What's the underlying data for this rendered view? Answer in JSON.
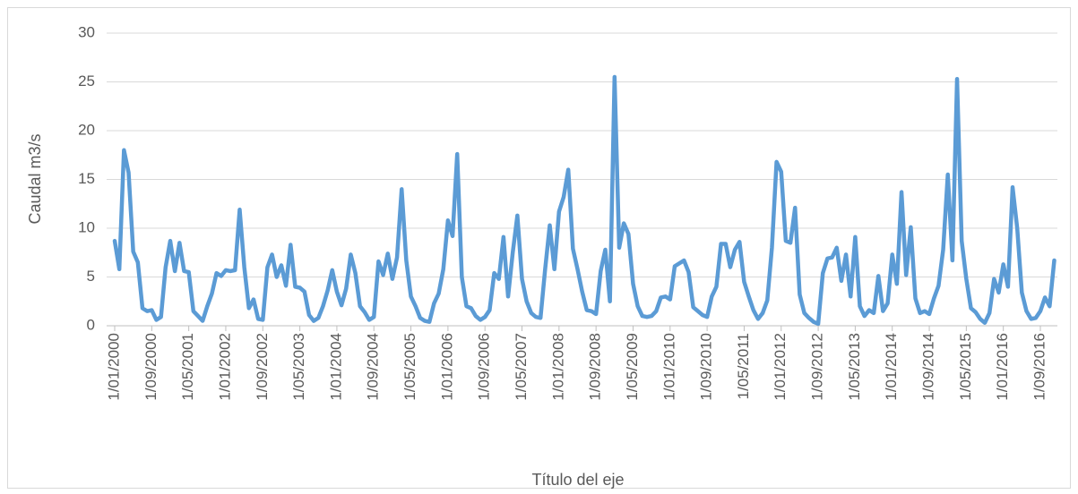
{
  "chart_data": {
    "type": "line",
    "y_label": "Caudal m3/s",
    "x_label": "Título del eje",
    "categories": [
      "1/01/2000",
      null,
      null,
      null,
      null,
      null,
      null,
      null,
      "1/09/2000",
      null,
      null,
      null,
      null,
      null,
      null,
      null,
      "1/05/2001",
      null,
      null,
      null,
      null,
      null,
      null,
      null,
      "1/01/2002",
      null,
      null,
      null,
      null,
      null,
      null,
      null,
      "1/09/2002",
      null,
      null,
      null,
      null,
      null,
      null,
      null,
      "1/05/2003",
      null,
      null,
      null,
      null,
      null,
      null,
      null,
      "1/01/2004",
      null,
      null,
      null,
      null,
      null,
      null,
      null,
      "1/09/2004",
      null,
      null,
      null,
      null,
      null,
      null,
      null,
      "1/05/2005",
      null,
      null,
      null,
      null,
      null,
      null,
      null,
      "1/01/2006",
      null,
      null,
      null,
      null,
      null,
      null,
      null,
      "1/09/2006",
      null,
      null,
      null,
      null,
      null,
      null,
      null,
      "1/05/2007",
      null,
      null,
      null,
      null,
      null,
      null,
      null,
      "1/01/2008",
      null,
      null,
      null,
      null,
      null,
      null,
      null,
      "1/09/2008",
      null,
      null,
      null,
      null,
      null,
      null,
      null,
      "1/05/2009",
      null,
      null,
      null,
      null,
      null,
      null,
      null,
      "1/01/2010",
      null,
      null,
      null,
      null,
      null,
      null,
      null,
      "1/09/2010",
      null,
      null,
      null,
      null,
      null,
      null,
      null,
      "1/05/2011",
      null,
      null,
      null,
      null,
      null,
      null,
      null,
      "1/01/2012",
      null,
      null,
      null,
      null,
      null,
      null,
      null,
      "1/09/2012",
      null,
      null,
      null,
      null,
      null,
      null,
      null,
      "1/05/2013",
      null,
      null,
      null,
      null,
      null,
      null,
      null,
      "1/01/2014",
      null,
      null,
      null,
      null,
      null,
      null,
      null,
      "1/09/2014",
      null,
      null,
      null,
      null,
      null,
      null,
      null,
      "1/05/2015",
      null,
      null,
      null,
      null,
      null,
      null,
      null,
      "1/01/2016",
      null,
      null,
      null,
      null,
      null,
      null,
      null,
      "1/09/2016",
      null,
      null,
      null
    ],
    "values": [
      8.7,
      5.8,
      18,
      15.7,
      7.6,
      6.5,
      1.8,
      1.5,
      1.6,
      0.6,
      0.9,
      6.0,
      8.7,
      5.6,
      8.5,
      5.6,
      5.5,
      1.5,
      1.0,
      0.5,
      2.0,
      3.3,
      5.4,
      5.1,
      5.7,
      5.6,
      5.7,
      11.9,
      6.0,
      1.8,
      2.7,
      0.7,
      0.6,
      6.0,
      7.3,
      5.0,
      6.2,
      4.1,
      8.3,
      4.0,
      3.9,
      3.5,
      1.1,
      0.5,
      0.8,
      2.0,
      3.6,
      5.7,
      3.5,
      2.1,
      3.8,
      7.3,
      5.4,
      2.0,
      1.4,
      0.6,
      0.9,
      6.6,
      5.2,
      7.4,
      4.8,
      7.0,
      14.0,
      6.7,
      3.0,
      2.0,
      0.8,
      0.5,
      0.4,
      2.3,
      3.3,
      5.8,
      10.8,
      9.2,
      17.6,
      5.0,
      2.0,
      1.8,
      1.0,
      0.6,
      0.9,
      1.6,
      5.4,
      4.8,
      9.1,
      3.0,
      7.5,
      11.3,
      4.8,
      2.5,
      1.3,
      0.9,
      0.8,
      5.8,
      10.3,
      5.8,
      11.7,
      13.2,
      16.0,
      7.9,
      5.8,
      3.5,
      1.6,
      1.5,
      1.2,
      5.6,
      7.8,
      2.5,
      25.5,
      8.0,
      10.5,
      9.4,
      4.3,
      2.0,
      1.0,
      0.9,
      1.0,
      1.5,
      2.9,
      3.0,
      2.7,
      6.1,
      6.4,
      6.7,
      5.5,
      1.9,
      1.5,
      1.1,
      0.9,
      3.0,
      4.0,
      8.4,
      8.4,
      6.0,
      7.8,
      8.6,
      4.5,
      3.0,
      1.6,
      0.7,
      1.3,
      2.6,
      8.0,
      16.8,
      15.8,
      8.7,
      8.5,
      12.1,
      3.2,
      1.3,
      0.8,
      0.4,
      0.2,
      5.4,
      6.9,
      7.0,
      8.0,
      4.6,
      7.3,
      3.0,
      9.1,
      2.0,
      1.0,
      1.6,
      1.3,
      5.1,
      1.5,
      2.3,
      7.3,
      4.3,
      13.7,
      5.2,
      10.1,
      2.8,
      1.3,
      1.5,
      1.2,
      2.8,
      4.1,
      7.8,
      15.5,
      6.7,
      25.3,
      8.7,
      4.8,
      1.8,
      1.4,
      0.7,
      0.3,
      1.3,
      4.8,
      3.4,
      6.3,
      4.0,
      14.2,
      10.0,
      3.4,
      1.5,
      0.7,
      0.8,
      1.5,
      2.9,
      2.0,
      6.7
    ],
    "color": "#5b9bd5",
    "ylim": [
      0,
      30
    ],
    "yticks": [
      0,
      5,
      10,
      15,
      20,
      25,
      30
    ],
    "grid": true
  }
}
